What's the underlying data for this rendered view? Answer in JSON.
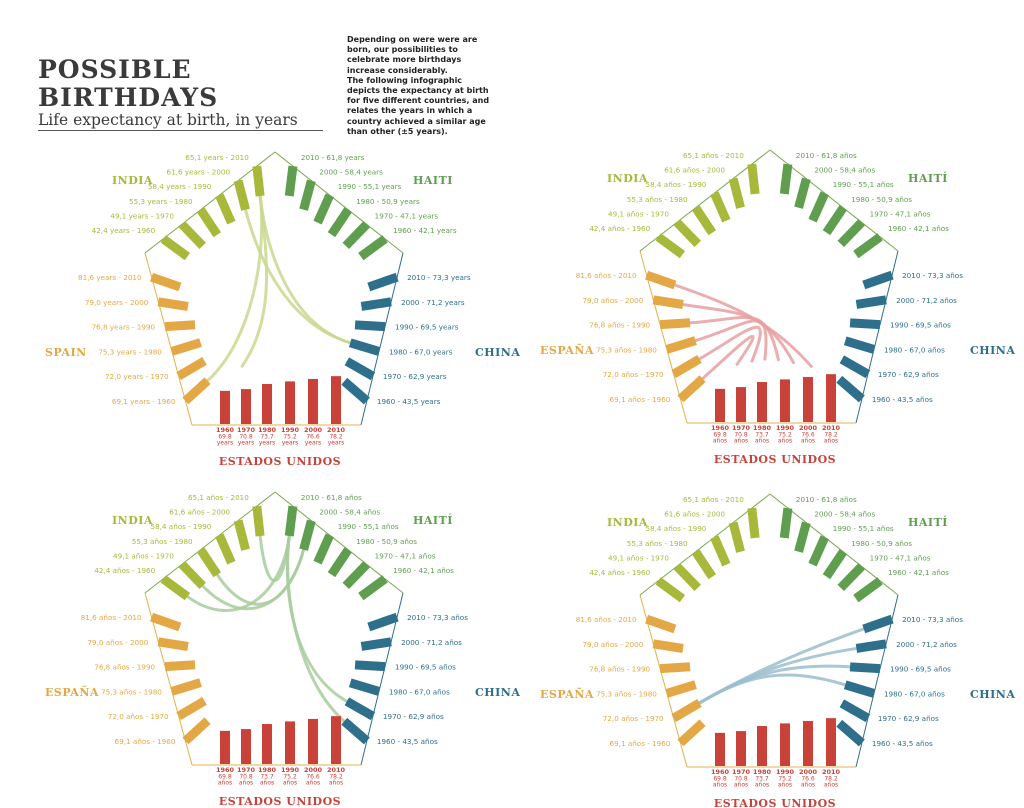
{
  "header": {
    "title_line1": "POSSIBLE",
    "title_line2": "BIRTHDAYS",
    "subtitle": "Life expectancy at birth, in years",
    "description_lines": [
      "Depending on were were are",
      "born, our possibilities to",
      "celebrate more birthdays",
      "increase considerably.",
      "The following infographic",
      "depicts the expectancy at birth",
      "for five different countries, and",
      "relates the years in which a",
      "country achieved a similar age",
      "than other (±5 years)."
    ]
  },
  "colors": {
    "india": "#a8b83a",
    "haiti": "#5f9e4f",
    "china": "#2e6f8c",
    "usa": "#c8423a",
    "spain": "#e3a845",
    "link_india": "#c9d88f",
    "link_usa": "#e8a0a0",
    "link_haiti": "#a9cc9e",
    "link_china": "#9bbecc",
    "outline_green": "#7aa84e",
    "outline_orange": "#e3b04a"
  },
  "chart_data": [
    {
      "type": "pentagon-chord",
      "country_names": {
        "india": "INDIA",
        "haiti": "HAITI",
        "china": "CHINA",
        "usa": "ESTADOS UNIDOS",
        "spain": "SPAIN"
      },
      "unit": "years",
      "years": [
        "1960",
        "1970",
        "1980",
        "1990",
        "2000",
        "2010"
      ],
      "life_expectancy": {
        "india": [
          "42,4",
          "49,1",
          "55,3",
          "58,4",
          "61,6",
          "65,1"
        ],
        "haiti": [
          "42,1",
          "47,1",
          "50,9",
          "55,1",
          "58,4",
          "61,8"
        ],
        "china": [
          "43,5",
          "62,9",
          "67,0",
          "69,5",
          "71,2",
          "73,3"
        ],
        "usa": [
          "69.8",
          "70.8",
          "73.7",
          "75.2",
          "76.6",
          "78.2"
        ],
        "spain": [
          "69,1",
          "72,0",
          "75,3",
          "76,8",
          "79,0",
          "81,6"
        ]
      },
      "links": [
        {
          "from": "india",
          "from_year": "2000",
          "to": "china",
          "to_year": "1980"
        },
        {
          "from": "india",
          "from_year": "2010",
          "to": "china",
          "to_year": "1980"
        },
        {
          "from": "india",
          "from_year": "2010",
          "to": "usa",
          "to_year": "1960"
        },
        {
          "from": "india",
          "from_year": "2010",
          "to": "spain",
          "to_year": "1960"
        }
      ]
    },
    {
      "type": "pentagon-chord",
      "country_names": {
        "india": "INDIA",
        "haiti": "HAITÍ",
        "china": "CHINA",
        "usa": "ESTADOS UNIDOS",
        "spain": "ESPAÑA"
      },
      "unit": "años",
      "years": [
        "1960",
        "1970",
        "1980",
        "1990",
        "2000",
        "2010"
      ],
      "life_expectancy": {
        "india": [
          "42,4",
          "49,1",
          "55,3",
          "58,4",
          "61,6",
          "65,1"
        ],
        "haiti": [
          "42,1",
          "47,1",
          "50,9",
          "55,1",
          "58,4",
          "61,8"
        ],
        "china": [
          "43,5",
          "62,9",
          "67,0",
          "69,5",
          "71,2",
          "73,3"
        ],
        "usa": [
          "69.8",
          "70.8",
          "73.7",
          "75.2",
          "76.6",
          "78.2"
        ],
        "spain": [
          "69,1",
          "72,0",
          "75,3",
          "76,8",
          "79,0",
          "81,6"
        ]
      },
      "links": [
        {
          "from": "usa",
          "from_year": "1960",
          "to": "spain",
          "to_year": "1960"
        },
        {
          "from": "usa",
          "from_year": "1970",
          "to": "spain",
          "to_year": "1970"
        },
        {
          "from": "usa",
          "from_year": "1980",
          "to": "spain",
          "to_year": "1980"
        },
        {
          "from": "usa",
          "from_year": "1990",
          "to": "spain",
          "to_year": "1990"
        },
        {
          "from": "usa",
          "from_year": "2000",
          "to": "spain",
          "to_year": "2000"
        },
        {
          "from": "usa",
          "from_year": "2010",
          "to": "spain",
          "to_year": "2010"
        }
      ]
    },
    {
      "type": "pentagon-chord",
      "country_names": {
        "india": "INDIA",
        "haiti": "HAITÍ",
        "china": "CHINA",
        "usa": "ESTADOS UNIDOS",
        "spain": "ESPAÑA"
      },
      "unit": "años",
      "years": [
        "1960",
        "1970",
        "1980",
        "1990",
        "2000",
        "2010"
      ],
      "life_expectancy": {
        "india": [
          "42,4",
          "49,1",
          "55,3",
          "58,4",
          "61,6",
          "65,1"
        ],
        "haiti": [
          "42,1",
          "47,1",
          "50,9",
          "55,1",
          "58,4",
          "61,8"
        ],
        "china": [
          "43,5",
          "62,9",
          "67,0",
          "69,5",
          "71,2",
          "73,3"
        ],
        "usa": [
          "69.8",
          "70.8",
          "73.7",
          "75.2",
          "76.6",
          "78.2"
        ],
        "spain": [
          "69,1",
          "72,0",
          "75,3",
          "76,8",
          "79,0",
          "81,6"
        ]
      },
      "links": [
        {
          "from": "haiti",
          "from_year": "2010",
          "to": "india",
          "to_year": "1960"
        },
        {
          "from": "haiti",
          "from_year": "2010",
          "to": "india",
          "to_year": "2010"
        },
        {
          "from": "haiti",
          "from_year": "2000",
          "to": "india",
          "to_year": "1970"
        },
        {
          "from": "haiti",
          "from_year": "2000",
          "to": "india",
          "to_year": "1980"
        },
        {
          "from": "haiti",
          "from_year": "2010",
          "to": "china",
          "to_year": "1970"
        },
        {
          "from": "haiti",
          "from_year": "2010",
          "to": "china",
          "to_year": "1960"
        }
      ]
    },
    {
      "type": "pentagon-chord",
      "country_names": {
        "india": "INDIA",
        "haiti": "HAITÍ",
        "china": "CHINA",
        "usa": "ESTADOS UNIDOS",
        "spain": "ESPAÑA"
      },
      "unit": "años",
      "years": [
        "1960",
        "1970",
        "1980",
        "1990",
        "2000",
        "2010"
      ],
      "life_expectancy": {
        "india": [
          "42,4",
          "49,1",
          "55,3",
          "58,4",
          "61,6",
          "65,1"
        ],
        "haiti": [
          "42,1",
          "47,1",
          "50,9",
          "55,1",
          "58,4",
          "61,8"
        ],
        "china": [
          "43,5",
          "62,9",
          "67,0",
          "69,5",
          "71,2",
          "73,3"
        ],
        "usa": [
          "69.8",
          "70.8",
          "73.7",
          "75.2",
          "76.6",
          "78.2"
        ],
        "spain": [
          "69,1",
          "72,0",
          "75,3",
          "76,8",
          "79,0",
          "81,6"
        ]
      },
      "links": [
        {
          "from": "spain",
          "from_year": "1970",
          "to": "china",
          "to_year": "2010"
        },
        {
          "from": "spain",
          "from_year": "1970",
          "to": "china",
          "to_year": "2000"
        },
        {
          "from": "spain",
          "from_year": "1970",
          "to": "china",
          "to_year": "1990"
        },
        {
          "from": "spain",
          "from_year": "1970",
          "to": "china",
          "to_year": "1980"
        }
      ]
    }
  ]
}
